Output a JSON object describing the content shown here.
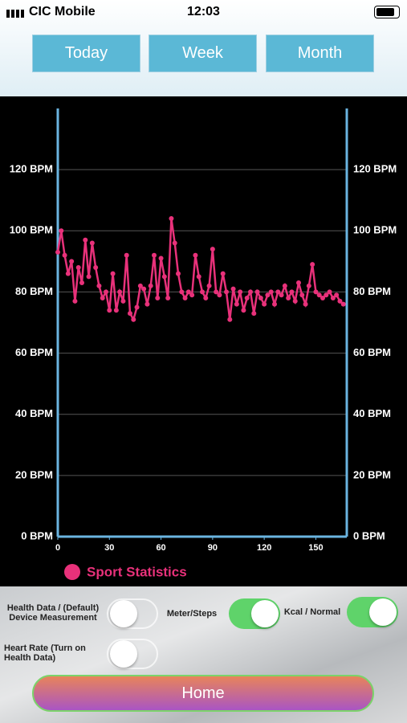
{
  "status_bar": {
    "carrier": "CIC Mobile",
    "time": "12:03"
  },
  "tabs": [
    "Today",
    "Week",
    "Month"
  ],
  "chart_data": {
    "type": "line",
    "x": [
      0,
      2,
      4,
      6,
      8,
      10,
      12,
      14,
      16,
      18,
      20,
      22,
      24,
      26,
      28,
      30,
      32,
      34,
      36,
      38,
      40,
      42,
      44,
      46,
      48,
      50,
      52,
      54,
      56,
      58,
      60,
      62,
      64,
      66,
      68,
      70,
      72,
      74,
      76,
      78,
      80,
      82,
      84,
      86,
      88,
      90,
      92,
      94,
      96,
      98,
      100,
      102,
      104,
      106,
      108,
      110,
      112,
      114,
      116,
      118,
      120,
      122,
      124,
      126,
      128,
      130,
      132,
      134,
      136,
      138,
      140,
      142,
      144,
      146,
      148,
      150,
      152,
      154,
      156,
      158,
      160,
      162,
      164,
      166
    ],
    "series": [
      {
        "name": "Sport Statistics",
        "color": "#e8317a",
        "values": [
          93,
          100,
          92,
          86,
          90,
          77,
          88,
          83,
          97,
          85,
          96,
          88,
          82,
          78,
          80,
          74,
          86,
          74,
          80,
          77,
          92,
          73,
          71,
          75,
          82,
          81,
          76,
          82,
          92,
          78,
          91,
          85,
          78,
          104,
          96,
          86,
          80,
          78,
          80,
          79,
          92,
          85,
          80,
          78,
          82,
          94,
          80,
          79,
          86,
          80,
          71,
          81,
          76,
          80,
          74,
          78,
          80,
          73,
          80,
          78,
          76,
          79,
          80,
          76,
          80,
          79,
          82,
          78,
          80,
          77,
          83,
          79,
          76,
          82,
          89,
          80,
          79,
          78,
          79,
          80,
          78,
          79,
          77,
          76
        ]
      }
    ],
    "xlim": [
      0,
      168
    ],
    "xticks": [
      0,
      30,
      60,
      90,
      120,
      150
    ],
    "ylim": [
      0,
      140
    ],
    "yticks": [
      {
        "value": 0,
        "label": "0 BPM"
      },
      {
        "value": 20,
        "label": "20 BPM"
      },
      {
        "value": 40,
        "label": "40 BPM"
      },
      {
        "value": 60,
        "label": "60 BPM"
      },
      {
        "value": 80,
        "label": "80 BPM"
      },
      {
        "value": 100,
        "label": "100 BPM"
      },
      {
        "value": 120,
        "label": "120 BPM"
      }
    ],
    "grid": true,
    "mirror_y_axis": true,
    "axis_color": "#6ab4e0"
  },
  "toggles": [
    {
      "label": "Health Data / (Default) Device Measurement",
      "on": false
    },
    {
      "label": "Meter/Steps",
      "on": true
    },
    {
      "label": "Kcal / Normal",
      "on": true
    },
    {
      "label": "Heart Rate (Turn on Health Data)",
      "on": false
    }
  ],
  "home_button": "Home"
}
